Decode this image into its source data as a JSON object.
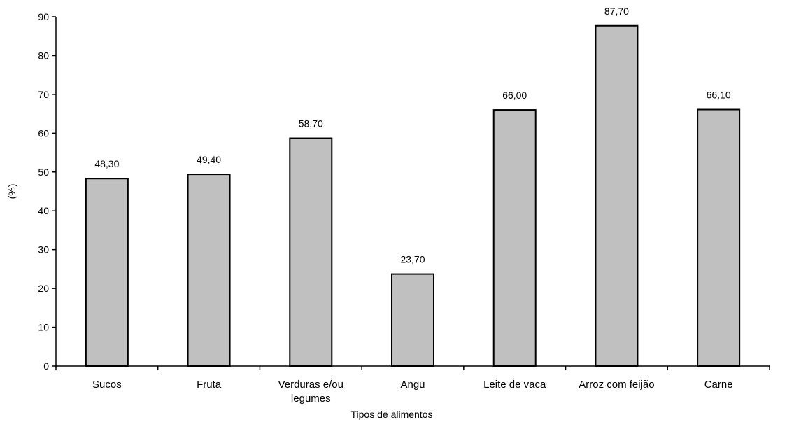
{
  "chart_data": {
    "type": "bar",
    "categories": [
      [
        "Sucos"
      ],
      [
        "Fruta"
      ],
      [
        "Verduras e/ou",
        "legumes"
      ],
      [
        "Angu"
      ],
      [
        "Leite de vaca"
      ],
      [
        "Arroz com feijão"
      ],
      [
        "Carne"
      ]
    ],
    "values": [
      48.3,
      49.4,
      58.7,
      23.7,
      66.0,
      87.7,
      66.1
    ],
    "data_labels": [
      "48,30",
      "49,40",
      "58,70",
      "23,70",
      "66,00",
      "87,70",
      "66,10"
    ],
    "xlabel": "Tipos de alimentos",
    "ylabel": "(%)",
    "ylim": [
      0,
      90
    ],
    "yticks": [
      0,
      10,
      20,
      30,
      40,
      50,
      60,
      70,
      80,
      90
    ],
    "grid": false,
    "bar_color": "#c0c0c0",
    "bar_edge_color": "#000000"
  }
}
